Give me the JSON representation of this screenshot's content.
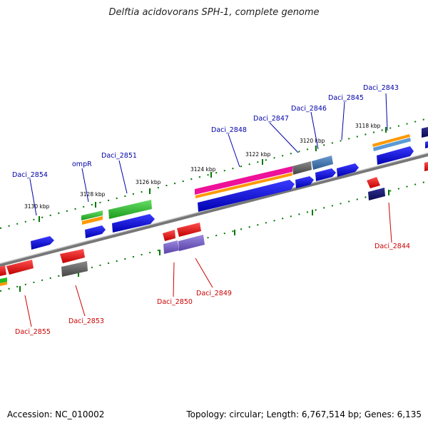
{
  "title": "Delftia acidovorans SPH-1, complete genome",
  "footer": {
    "accession": "Accession: NC_010002",
    "summary": "Topology: circular; Length: 6,767,514 bp; Genes: 6,135"
  },
  "colors": {
    "plus_label": "#0000aa",
    "minus_label": "#cc0000",
    "tick": "#007700",
    "axis": "#888888"
  },
  "ticks": [
    {
      "label": "3118 kbp"
    },
    {
      "label": "3120 kbp"
    },
    {
      "label": "3122 kbp"
    },
    {
      "label": "3124 kbp"
    },
    {
      "label": "3126 kbp"
    },
    {
      "label": "3128 kbp"
    },
    {
      "label": "3130 kbp"
    }
  ],
  "gene_labels": {
    "plus": [
      "Daci_2843",
      "Daci_2845",
      "Daci_2846",
      "Daci_2847",
      "Daci_2848",
      "Daci_2851",
      "ompR",
      "Daci_2854"
    ],
    "minus": [
      "Daci_2844",
      "Daci_2849",
      "Daci_2850",
      "Daci_2853",
      "Daci_2855"
    ]
  }
}
